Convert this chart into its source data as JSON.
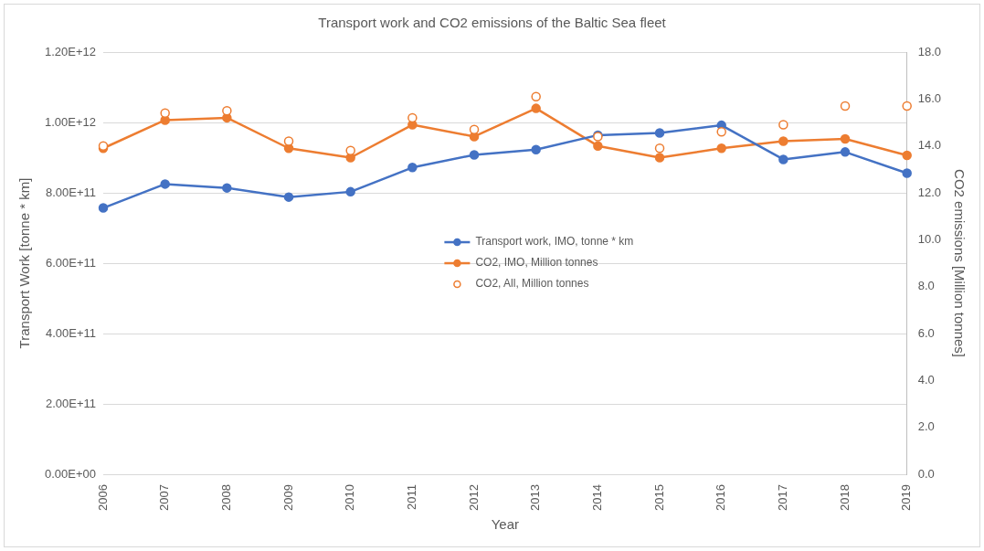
{
  "chart_data": {
    "type": "line",
    "title": "Transport work and CO2 emissions of the Baltic Sea fleet",
    "xlabel": "Year",
    "ylabel": "Transport Work [tonne * km]",
    "y2label": "CO2 emissions [Million tonnes]",
    "categories": [
      "2006",
      "2007",
      "2008",
      "2009",
      "2010",
      "2011",
      "2012",
      "2013",
      "2014",
      "2015",
      "2016",
      "2017",
      "2018",
      "2019"
    ],
    "series": [
      {
        "name": "Transport work, IMO, tonne * km",
        "color": "#4472c4",
        "values": [
          757000000000.0,
          825000000000.0,
          814000000000.0,
          788000000000.0,
          803000000000.0,
          872000000000.0,
          908000000000.0,
          923000000000.0,
          964000000000.0,
          970000000000.0,
          992000000000.0,
          895000000000.0,
          916000000000.0,
          856000000000.0
        ]
      },
      {
        "name": "CO2, IMO, Million tonnes",
        "color": "#ed7d31",
        "axis": "y2",
        "values": [
          13.9,
          15.1,
          15.2,
          13.9,
          13.5,
          14.9,
          14.4,
          15.6,
          14.0,
          13.5,
          13.9,
          14.2,
          14.3,
          13.6
        ]
      },
      {
        "name": "CO2, All, Million tonnes",
        "type": "scatter",
        "color": "#ed7d31",
        "axis": "y2",
        "values": [
          14.0,
          15.4,
          15.5,
          14.2,
          13.8,
          15.2,
          14.7,
          16.1,
          14.4,
          13.9,
          14.6,
          14.9,
          15.7,
          15.7
        ]
      }
    ],
    "ylim": [
      0,
      1200000000000.0
    ],
    "yticks": [
      {
        "value": 0,
        "label": "0.00E+00"
      },
      {
        "value": 200000000000.0,
        "label": "2.00E+11"
      },
      {
        "value": 400000000000.0,
        "label": "4.00E+11"
      },
      {
        "value": 600000000000.0,
        "label": "6.00E+11"
      },
      {
        "value": 800000000000.0,
        "label": "8.00E+11"
      },
      {
        "value": 1000000000000.0,
        "label": "1.00E+12"
      },
      {
        "value": 1200000000000.0,
        "label": "1.20E+12"
      }
    ],
    "y2lim": [
      0,
      18
    ],
    "y2ticks": [
      {
        "value": 0,
        "label": "0.0"
      },
      {
        "value": 2,
        "label": "2.0"
      },
      {
        "value": 4,
        "label": "4.0"
      },
      {
        "value": 6,
        "label": "6.0"
      },
      {
        "value": 8,
        "label": "8.0"
      },
      {
        "value": 10,
        "label": "10.0"
      },
      {
        "value": 12,
        "label": "12.0"
      },
      {
        "value": 14,
        "label": "14.0"
      },
      {
        "value": 16,
        "label": "16.0"
      },
      {
        "value": 18,
        "label": "18.0"
      }
    ],
    "grid": "y",
    "legend": "center",
    "marker": "circle",
    "line_style": "solid"
  }
}
